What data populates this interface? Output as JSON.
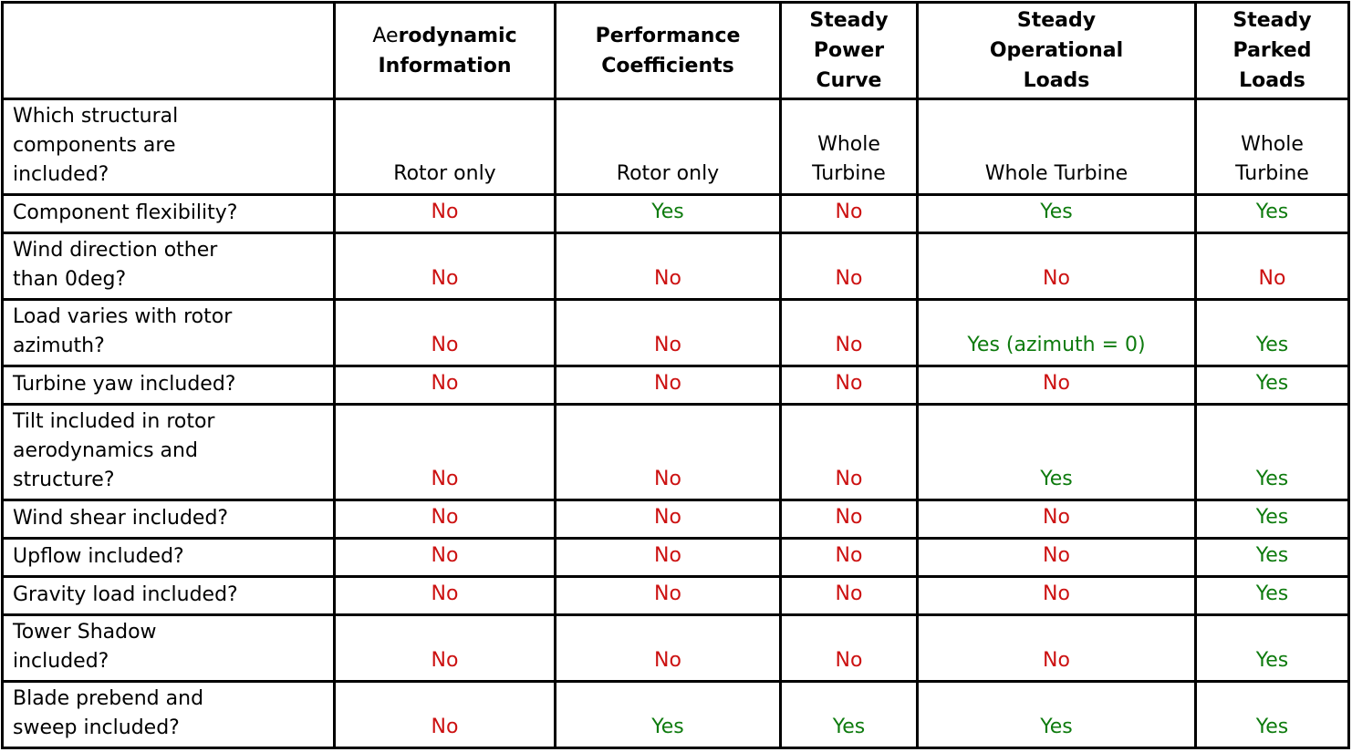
{
  "colors": {
    "yes_green": "#0E7B0E",
    "no_red": "#CC1111",
    "neutral_black": "#000000",
    "border_black": "#000000"
  },
  "table": {
    "header": {
      "empty": "",
      "aero_prefix": "Ae",
      "aero_rest": "rodynamic\nInformation",
      "performance": "Performance\nCoefficients",
      "power_curve": "Steady\nPower\nCurve",
      "operational_loads": "Steady\nOperational\nLoads",
      "parked_loads": "Steady\nParked\nLoads"
    },
    "rows": [
      {
        "label": "Which structural\ncomponents are\nincluded?",
        "cells": [
          {
            "text": "Rotor only",
            "color": "#000000"
          },
          {
            "text": "Rotor only",
            "color": "#000000"
          },
          {
            "text": "Whole\nTurbine",
            "color": "#000000"
          },
          {
            "text": "Whole Turbine",
            "color": "#000000"
          },
          {
            "text": "Whole\nTurbine",
            "color": "#000000"
          }
        ]
      },
      {
        "label": "Component flexibility?",
        "cells": [
          {
            "text": "No",
            "color": "#CC1111"
          },
          {
            "text": "Yes",
            "color": "#0E7B0E"
          },
          {
            "text": "No",
            "color": "#CC1111"
          },
          {
            "text": "Yes",
            "color": "#0E7B0E"
          },
          {
            "text": "Yes",
            "color": "#0E7B0E"
          }
        ]
      },
      {
        "label": "Wind direction other\nthan 0deg?",
        "cells": [
          {
            "text": "No",
            "color": "#CC1111"
          },
          {
            "text": "No",
            "color": "#CC1111"
          },
          {
            "text": "No",
            "color": "#CC1111"
          },
          {
            "text": "No",
            "color": "#CC1111"
          },
          {
            "text": "No",
            "color": "#CC1111"
          }
        ]
      },
      {
        "label": "Load varies with rotor\nazimuth?",
        "cells": [
          {
            "text": "No",
            "color": "#CC1111"
          },
          {
            "text": "No",
            "color": "#CC1111"
          },
          {
            "text": "No",
            "color": "#CC1111"
          },
          {
            "text": "Yes (azimuth = 0)",
            "color": "#0E7B0E"
          },
          {
            "text": "Yes",
            "color": "#0E7B0E"
          }
        ]
      },
      {
        "label": "Turbine yaw included?",
        "cells": [
          {
            "text": "No",
            "color": "#CC1111"
          },
          {
            "text": "No",
            "color": "#CC1111"
          },
          {
            "text": "No",
            "color": "#CC1111"
          },
          {
            "text": "No",
            "color": "#CC1111"
          },
          {
            "text": "Yes",
            "color": "#0E7B0E"
          }
        ]
      },
      {
        "label": "Tilt included in rotor\naerodynamics and\nstructure?",
        "cells": [
          {
            "text": "No",
            "color": "#CC1111"
          },
          {
            "text": "No",
            "color": "#CC1111"
          },
          {
            "text": "No",
            "color": "#CC1111"
          },
          {
            "text": "Yes",
            "color": "#0E7B0E"
          },
          {
            "text": "Yes",
            "color": "#0E7B0E"
          }
        ]
      },
      {
        "label": "Wind shear included?",
        "cells": [
          {
            "text": "No",
            "color": "#CC1111"
          },
          {
            "text": "No",
            "color": "#CC1111"
          },
          {
            "text": "No",
            "color": "#CC1111"
          },
          {
            "text": "No",
            "color": "#CC1111"
          },
          {
            "text": "Yes",
            "color": "#0E7B0E"
          }
        ]
      },
      {
        "label": "Upflow included?",
        "cells": [
          {
            "text": "No",
            "color": "#CC1111"
          },
          {
            "text": "No",
            "color": "#CC1111"
          },
          {
            "text": "No",
            "color": "#CC1111"
          },
          {
            "text": "No",
            "color": "#CC1111"
          },
          {
            "text": "Yes",
            "color": "#0E7B0E"
          }
        ]
      },
      {
        "label": "Gravity load included?",
        "cells": [
          {
            "text": "No",
            "color": "#CC1111"
          },
          {
            "text": "No",
            "color": "#CC1111"
          },
          {
            "text": "No",
            "color": "#CC1111"
          },
          {
            "text": "No",
            "color": "#CC1111"
          },
          {
            "text": "Yes",
            "color": "#0E7B0E"
          }
        ]
      },
      {
        "label": "Tower Shadow\nincluded?",
        "cells": [
          {
            "text": "No",
            "color": "#CC1111"
          },
          {
            "text": "No",
            "color": "#CC1111"
          },
          {
            "text": "No",
            "color": "#CC1111"
          },
          {
            "text": "No",
            "color": "#CC1111"
          },
          {
            "text": "Yes",
            "color": "#0E7B0E"
          }
        ]
      },
      {
        "label": "Blade prebend and\nsweep included?",
        "cells": [
          {
            "text": "No",
            "color": "#CC1111"
          },
          {
            "text": "Yes",
            "color": "#0E7B0E"
          },
          {
            "text": "Yes",
            "color": "#0E7B0E"
          },
          {
            "text": "Yes",
            "color": "#0E7B0E"
          },
          {
            "text": "Yes",
            "color": "#0E7B0E"
          }
        ]
      }
    ]
  }
}
